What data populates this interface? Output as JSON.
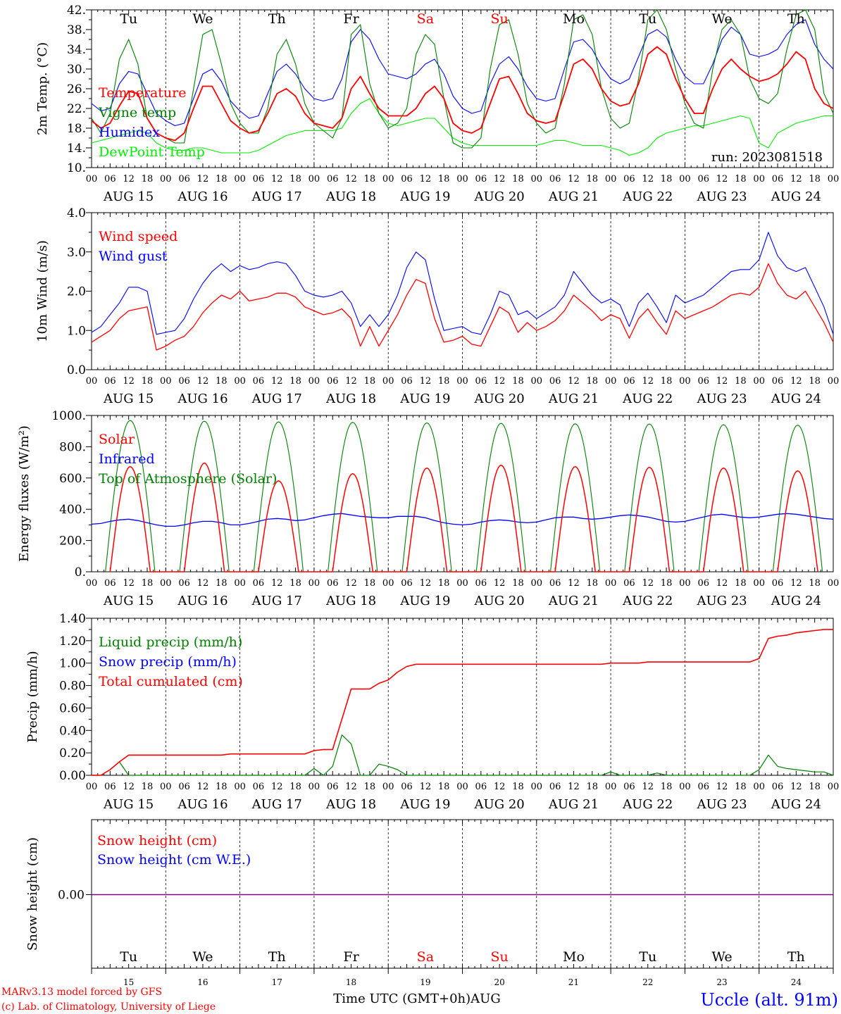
{
  "run_label": "run: 2023081518",
  "footer": {
    "model_line1": "MARv3.13 model forced by GFS",
    "model_line2": "(c) Lab. of Climatology, University of Liege",
    "xlabel": "Time UTC (GMT+0h)AUG",
    "station": "Uccle (alt. 91m)"
  },
  "days": [
    "AUG 15",
    "AUG 16",
    "AUG 17",
    "AUG 18",
    "AUG 19",
    "AUG 20",
    "AUG 21",
    "AUG 22",
    "AUG 23",
    "AUG 24"
  ],
  "weekdays": [
    "Tu",
    "We",
    "Th",
    "Fr",
    "Sa",
    "Su",
    "Mo",
    "Tu",
    "We",
    "Th"
  ],
  "weekday_colors": [
    "#000000",
    "#000000",
    "#000000",
    "#000000",
    "#ff0000",
    "#ff0000",
    "#000000",
    "#000000",
    "#000000",
    "#000000"
  ],
  "day_numbers": [
    "15",
    "16",
    "17",
    "18",
    "19",
    "20",
    "21",
    "22",
    "23",
    "24"
  ],
  "hour_ticks": [
    "00",
    "06",
    "12",
    "18"
  ],
  "colors": {
    "red": "#ff0000",
    "blue": "#0000ff",
    "green": "#008000",
    "lightgreen": "#00ee00",
    "purple": "#800080"
  },
  "chart_data": [
    {
      "type": "line",
      "ylabel": "2m Temp. (°C)",
      "ylim": [
        10,
        42
      ],
      "yticks": [
        "10.",
        "14.",
        "18.",
        "22.",
        "26.",
        "30.",
        "34.",
        "38.",
        "42."
      ],
      "x": "hours since 2023-08-15 00 UTC, 0–240, 6-hourly",
      "series": [
        {
          "name": "Temperature",
          "color": "#ff0000",
          "values": [
            19.5,
            18,
            19,
            22.5,
            25.5,
            25,
            20,
            17,
            16,
            15.5,
            17,
            22,
            26.5,
            26.5,
            23,
            19.5,
            18,
            17,
            17.5,
            21,
            25,
            26,
            24.5,
            21,
            19,
            18.5,
            18,
            20,
            26,
            28.5,
            25,
            22,
            20.5,
            20.5,
            20.5,
            22,
            25,
            26.5,
            24,
            19,
            17.5,
            17,
            18,
            23,
            28,
            28.5,
            25,
            21,
            19.5,
            19,
            19.5,
            25,
            31,
            32,
            30,
            26,
            23.5,
            22.5,
            23,
            27,
            33,
            34.5,
            33,
            28,
            24,
            21,
            21,
            26,
            30,
            32,
            30,
            28.5,
            27.5,
            28,
            29,
            31,
            33.5,
            32,
            26,
            23,
            22
          ]
        },
        {
          "name": "Vigne temp",
          "color": "#008000",
          "values": [
            20,
            17,
            21,
            32,
            36,
            31,
            20,
            17,
            16,
            15,
            15,
            26,
            37,
            38,
            31,
            23,
            19,
            17,
            17,
            22,
            33,
            36,
            31,
            23,
            19,
            17.5,
            16,
            20,
            37,
            39,
            27,
            21,
            18,
            19,
            22,
            33,
            37,
            35,
            24,
            15,
            14,
            14,
            16,
            30,
            39,
            40,
            33,
            23,
            19,
            17,
            18,
            27,
            40,
            41,
            37,
            26,
            20,
            18,
            19,
            28,
            40,
            42,
            38,
            30,
            23,
            19,
            18,
            30,
            38,
            40,
            37,
            28,
            24,
            23,
            25,
            34,
            41,
            42,
            38,
            25,
            21
          ]
        },
        {
          "name": "Humidex",
          "color": "#0000ff",
          "values": [
            23,
            21.5,
            22,
            27,
            29.5,
            29,
            25,
            21,
            19.5,
            18.5,
            19,
            24,
            29,
            30,
            27.5,
            23.5,
            21.5,
            20,
            20.5,
            25,
            29.5,
            31,
            29,
            26,
            24,
            23.5,
            24,
            28,
            35.5,
            38,
            36,
            32,
            29,
            28.5,
            28,
            29,
            31,
            32,
            29,
            24.5,
            22,
            21,
            21.5,
            27,
            31,
            32.5,
            30,
            26.5,
            24,
            23.5,
            24,
            30,
            35.5,
            36,
            34,
            30.5,
            28,
            27,
            28,
            32.5,
            37,
            38,
            36.5,
            32,
            28.5,
            27,
            27,
            31,
            36,
            38.5,
            37,
            33,
            32.5,
            33,
            34,
            37,
            39,
            40,
            35,
            32,
            30
          ]
        },
        {
          "name": "DewPoint Temp",
          "color": "#00ee00",
          "values": [
            15,
            15.5,
            16,
            16.5,
            17,
            17.5,
            17,
            15,
            14,
            13.5,
            13.5,
            14,
            14,
            13.5,
            13,
            13,
            13,
            13,
            13.5,
            14.5,
            15.5,
            16.5,
            17,
            17.5,
            17.5,
            17.5,
            17.5,
            18,
            21,
            23,
            24,
            21,
            19,
            18.5,
            19,
            19.5,
            20,
            20,
            18,
            16,
            15,
            14.5,
            14.5,
            14.5,
            14.5,
            14.5,
            14.5,
            14.5,
            14.5,
            15,
            15.5,
            15.5,
            15,
            14.5,
            14.5,
            14.5,
            14,
            13.5,
            12.5,
            13,
            14,
            16,
            17,
            17.5,
            18,
            18.5,
            18.5,
            19,
            19.5,
            20,
            20.5,
            20,
            15,
            14,
            17,
            18,
            19,
            19.5,
            20,
            20.5,
            20.5
          ]
        }
      ]
    },
    {
      "type": "line",
      "ylabel": "10m Wind (m/s)",
      "ylim": [
        0,
        4
      ],
      "yticks": [
        "0.0",
        "1.0",
        "2.0",
        "3.0",
        "4.0"
      ],
      "series": [
        {
          "name": "Wind speed",
          "color": "#ff0000",
          "values": [
            0.7,
            0.85,
            1.0,
            1.3,
            1.5,
            1.55,
            1.6,
            0.5,
            0.6,
            0.75,
            0.85,
            1.1,
            1.45,
            1.7,
            1.9,
            1.8,
            2.0,
            1.75,
            1.8,
            1.85,
            1.95,
            1.95,
            1.85,
            1.6,
            1.5,
            1.4,
            1.45,
            1.55,
            1.3,
            0.6,
            1.1,
            0.6,
            1.0,
            1.4,
            1.9,
            2.3,
            2.2,
            1.3,
            0.7,
            0.75,
            0.85,
            0.65,
            0.6,
            1.1,
            1.6,
            1.45,
            0.95,
            1.2,
            1.0,
            1.1,
            1.25,
            1.5,
            1.9,
            1.7,
            1.5,
            1.25,
            1.4,
            1.3,
            0.8,
            1.3,
            1.55,
            1.2,
            0.9,
            1.5,
            1.3,
            1.4,
            1.5,
            1.6,
            1.75,
            1.9,
            1.95,
            1.9,
            2.1,
            2.7,
            2.2,
            1.9,
            1.8,
            2.0,
            1.6,
            1.2,
            0.7
          ]
        },
        {
          "name": "Wind gust",
          "color": "#0000ff",
          "values": [
            0.95,
            1.1,
            1.4,
            1.7,
            2.1,
            2.1,
            2.0,
            0.9,
            0.95,
            1.0,
            1.3,
            1.8,
            2.2,
            2.5,
            2.7,
            2.5,
            2.65,
            2.55,
            2.6,
            2.7,
            2.75,
            2.7,
            2.4,
            2.0,
            1.9,
            1.85,
            1.9,
            2.0,
            1.7,
            1.1,
            1.4,
            1.1,
            1.4,
            1.9,
            2.6,
            3.0,
            2.8,
            1.8,
            1.0,
            1.05,
            1.1,
            0.95,
            0.9,
            1.4,
            2.0,
            1.9,
            1.4,
            1.5,
            1.3,
            1.45,
            1.6,
            1.9,
            2.5,
            2.2,
            1.9,
            1.7,
            1.8,
            1.65,
            1.1,
            1.7,
            1.95,
            1.6,
            1.2,
            1.9,
            1.7,
            1.8,
            1.9,
            2.1,
            2.3,
            2.5,
            2.55,
            2.55,
            2.8,
            3.5,
            2.9,
            2.6,
            2.5,
            2.6,
            2.1,
            1.6,
            0.9
          ]
        }
      ]
    },
    {
      "type": "line",
      "ylabel": "Energy fluxes (W/m²)",
      "ylim": [
        0,
        1100
      ],
      "yticks": [
        "0.",
        "200.",
        "400.",
        "600.",
        "800.",
        "1000."
      ],
      "series": [
        {
          "name": "Solar",
          "color": "#ff0000",
          "daily_peak": [
            740,
            765,
            640,
            690,
            730,
            750,
            740,
            735,
            730,
            710
          ]
        },
        {
          "name": "Infrared",
          "color": "#0000ff",
          "values": [
            335,
            340,
            355,
            365,
            370,
            360,
            345,
            330,
            320,
            320,
            330,
            345,
            355,
            355,
            345,
            330,
            330,
            340,
            355,
            370,
            375,
            370,
            360,
            365,
            380,
            395,
            405,
            410,
            400,
            390,
            385,
            380,
            380,
            390,
            390,
            390,
            380,
            360,
            345,
            335,
            330,
            335,
            350,
            360,
            365,
            360,
            350,
            345,
            350,
            365,
            380,
            385,
            385,
            375,
            370,
            375,
            385,
            395,
            400,
            395,
            385,
            370,
            355,
            350,
            355,
            370,
            385,
            400,
            405,
            395,
            385,
            380,
            385,
            395,
            405,
            410,
            405,
            395,
            385,
            375,
            370
          ]
        },
        {
          "name": "Top of Atmosphere (Solar)",
          "color": "#008000",
          "daily_peak": [
            1065,
            1060,
            1055,
            1052,
            1048,
            1045,
            1042,
            1040,
            1035,
            1032
          ]
        }
      ]
    },
    {
      "type": "line",
      "ylabel": "Precip (mm/h)",
      "ylim": [
        0,
        1.4
      ],
      "yticks": [
        "0.00",
        "0.20",
        "0.40",
        "0.60",
        "0.80",
        "1.00",
        "1.20",
        "1.40"
      ],
      "series": [
        {
          "name": "Liquid precip (mm/h)",
          "color": "#008000",
          "values": [
            0,
            0,
            0.05,
            0.12,
            0,
            0,
            0,
            0,
            0,
            0,
            0,
            0,
            0,
            0,
            0,
            0,
            0,
            0,
            0,
            0,
            0,
            0,
            0,
            0,
            0.06,
            0,
            0.08,
            0.36,
            0.28,
            0,
            0,
            0.1,
            0.08,
            0.05,
            0,
            0,
            0,
            0,
            0,
            0,
            0,
            0,
            0,
            0,
            0,
            0,
            0,
            0,
            0,
            0,
            0,
            0,
            0,
            0,
            0,
            0,
            0.03,
            0,
            0,
            0,
            0,
            0.02,
            0,
            0,
            0,
            0,
            0,
            0,
            0,
            0,
            0,
            0,
            0.05,
            0.18,
            0.08,
            0.06,
            0.05,
            0.04,
            0.03,
            0.03,
            0
          ]
        },
        {
          "name": "Snow precip (mm/h)",
          "color": "#0000ff",
          "values": []
        },
        {
          "name": "Total cumulated (cm)",
          "color": "#ff0000",
          "values": [
            0,
            0,
            0.05,
            0.12,
            0.18,
            0.18,
            0.18,
            0.18,
            0.18,
            0.18,
            0.18,
            0.18,
            0.18,
            0.18,
            0.18,
            0.19,
            0.19,
            0.19,
            0.19,
            0.19,
            0.19,
            0.19,
            0.19,
            0.19,
            0.22,
            0.23,
            0.23,
            0.5,
            0.77,
            0.77,
            0.77,
            0.82,
            0.85,
            0.92,
            0.97,
            0.99,
            0.99,
            0.99,
            0.99,
            0.99,
            0.99,
            0.99,
            0.99,
            0.99,
            0.99,
            0.99,
            0.99,
            0.99,
            0.99,
            0.99,
            0.99,
            0.99,
            0.99,
            0.99,
            0.99,
            0.99,
            1.0,
            1.0,
            1.0,
            1.0,
            1.01,
            1.01,
            1.01,
            1.01,
            1.01,
            1.01,
            1.01,
            1.01,
            1.01,
            1.01,
            1.01,
            1.01,
            1.04,
            1.22,
            1.24,
            1.25,
            1.27,
            1.28,
            1.29,
            1.3,
            1.3
          ]
        }
      ]
    },
    {
      "type": "line",
      "ylabel": "Snow height (cm)",
      "yticks": [
        "0.00"
      ],
      "series": [
        {
          "name": "Snow height (cm)",
          "color": "#ff0000",
          "values": [
            0,
            0
          ]
        },
        {
          "name": "Snow height (cm W.E.)",
          "color": "#0000ff",
          "values": [
            0,
            0
          ]
        }
      ]
    }
  ]
}
